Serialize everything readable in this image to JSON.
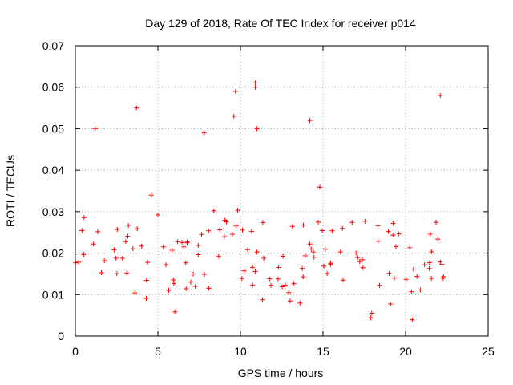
{
  "chart_data": {
    "type": "scatter",
    "title": "Day 129 of 2018, Rate Of TEC Index for receiver p014",
    "xlabel": "GPS time / hours",
    "ylabel": "ROTI / TECUs",
    "xlim": [
      0,
      25
    ],
    "ylim": [
      0,
      0.07
    ],
    "x_ticks": [
      "0",
      "5",
      "10",
      "15",
      "20",
      "25"
    ],
    "y_ticks": [
      "0",
      "0.01",
      "0.02",
      "0.03",
      "0.04",
      "0.05",
      "0.06",
      "0.07"
    ],
    "grid": true,
    "marker": "plus",
    "color": "#ff0000",
    "data_extent": {
      "x_max": 22.4
    },
    "notable_points": [
      {
        "x": 10.9,
        "y": 0.061
      },
      {
        "x": 10.9,
        "y": 0.06
      },
      {
        "x": 9.7,
        "y": 0.059
      },
      {
        "x": 22.1,
        "y": 0.058
      },
      {
        "x": 3.7,
        "y": 0.055
      },
      {
        "x": 9.6,
        "y": 0.053
      },
      {
        "x": 14.2,
        "y": 0.052
      },
      {
        "x": 1.2,
        "y": 0.05
      },
      {
        "x": 11.0,
        "y": 0.05
      },
      {
        "x": 7.8,
        "y": 0.049
      }
    ]
  }
}
